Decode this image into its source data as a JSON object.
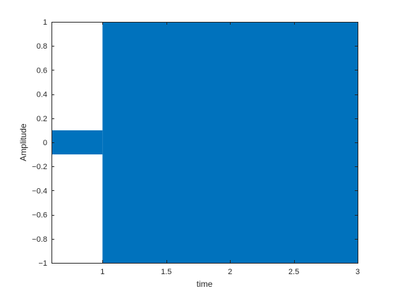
{
  "chart_data": {
    "type": "area",
    "title": "",
    "xlabel": "time",
    "ylabel": "Amplitude",
    "xlim": [
      0.6,
      3
    ],
    "ylim": [
      -1,
      1
    ],
    "xticks": [
      1,
      1.5,
      2,
      2.5,
      3
    ],
    "xtick_labels": [
      "1",
      "1.5",
      "2",
      "2.5",
      "3"
    ],
    "yticks": [
      -1,
      -0.8,
      -0.6,
      -0.4,
      -0.2,
      0,
      0.2,
      0.4,
      0.6,
      0.8,
      1
    ],
    "ytick_labels": [
      "−1",
      "−0.8",
      "−0.6",
      "−0.4",
      "−0.2",
      "0",
      "0.2",
      "0.4",
      "0.6",
      "0.8",
      "1"
    ],
    "grid": false,
    "color": "#0072BD",
    "series": [
      {
        "segments": [
          {
            "x_start": 0.6,
            "x_end": 1,
            "amplitude_min": -0.1,
            "amplitude_max": 0.1
          },
          {
            "x_start": 1,
            "x_end": 3,
            "amplitude_min": -1,
            "amplitude_max": 1
          }
        ]
      }
    ]
  }
}
